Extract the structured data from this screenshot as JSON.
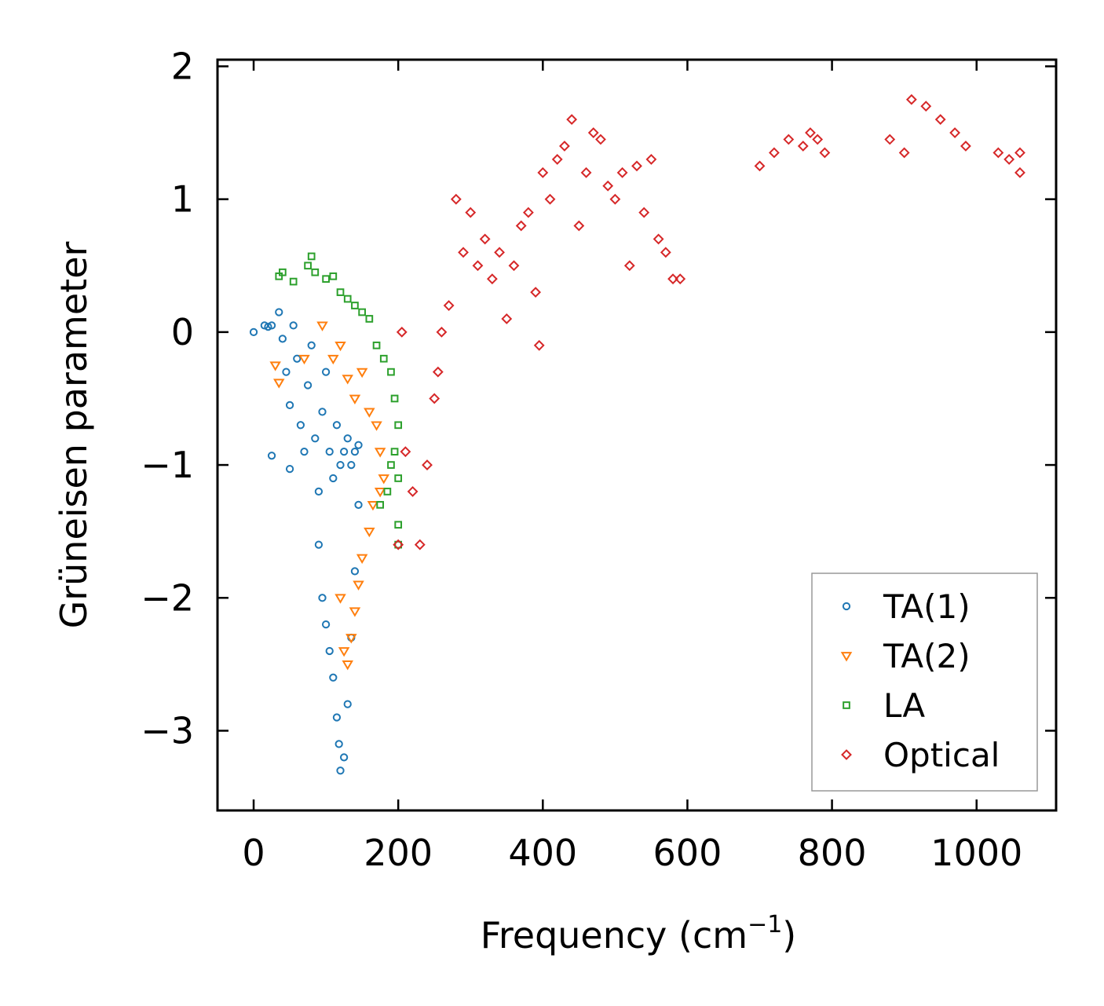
{
  "chart_data": {
    "type": "scatter",
    "title": "",
    "xlabel": "Frequency (cm",
    "xlabel_sup": "−1",
    "xlabel_end": ")",
    "ylabel": "Grüneisen parameter",
    "xlim": [
      -50,
      1110
    ],
    "ylim": [
      -3.6,
      2.05
    ],
    "xticks": [
      0,
      200,
      400,
      600,
      800,
      1000
    ],
    "xtick_labels": [
      "0",
      "200",
      "400",
      "600",
      "800",
      "1000"
    ],
    "yticks": [
      2,
      1,
      0,
      -1,
      -2,
      -3
    ],
    "ytick_labels": [
      "2",
      "1",
      "0",
      "−1",
      "−2",
      "−3"
    ],
    "legend_position": "bottom-right",
    "series": [
      {
        "name": "TA(1)",
        "marker": "circle",
        "color": "#1f77b4",
        "points": [
          [
            0,
            0
          ],
          [
            15,
            0.05
          ],
          [
            20,
            0.04
          ],
          [
            25,
            0.05
          ],
          [
            35,
            0.15
          ],
          [
            40,
            -0.05
          ],
          [
            45,
            -0.3
          ],
          [
            50,
            -0.55
          ],
          [
            55,
            0.05
          ],
          [
            60,
            -0.2
          ],
          [
            65,
            -0.7
          ],
          [
            70,
            -0.9
          ],
          [
            75,
            -0.4
          ],
          [
            80,
            -0.1
          ],
          [
            85,
            -0.8
          ],
          [
            90,
            -1.2
          ],
          [
            95,
            -0.6
          ],
          [
            100,
            -0.3
          ],
          [
            105,
            -0.9
          ],
          [
            110,
            -1.1
          ],
          [
            115,
            -0.7
          ],
          [
            120,
            -1.0
          ],
          [
            125,
            -0.9
          ],
          [
            130,
            -0.8
          ],
          [
            135,
            -1.0
          ],
          [
            140,
            -0.9
          ],
          [
            145,
            -0.85
          ],
          [
            25,
            -0.93
          ],
          [
            50,
            -1.03
          ],
          [
            90,
            -1.6
          ],
          [
            95,
            -2.0
          ],
          [
            100,
            -2.2
          ],
          [
            105,
            -2.4
          ],
          [
            110,
            -2.6
          ],
          [
            115,
            -2.9
          ],
          [
            118,
            -3.1
          ],
          [
            120,
            -3.3
          ],
          [
            125,
            -3.2
          ],
          [
            130,
            -2.8
          ],
          [
            135,
            -2.3
          ],
          [
            140,
            -1.8
          ],
          [
            145,
            -1.3
          ]
        ]
      },
      {
        "name": "TA(2)",
        "marker": "triangle-down",
        "color": "#ff7f0e",
        "points": [
          [
            30,
            -0.25
          ],
          [
            35,
            -0.38
          ],
          [
            70,
            -0.2
          ],
          [
            95,
            0.05
          ],
          [
            110,
            -0.2
          ],
          [
            120,
            -0.1
          ],
          [
            130,
            -0.35
          ],
          [
            140,
            -0.5
          ],
          [
            150,
            -0.3
          ],
          [
            160,
            -0.6
          ],
          [
            170,
            -0.7
          ],
          [
            175,
            -0.9
          ],
          [
            180,
            -1.1
          ],
          [
            175,
            -1.2
          ],
          [
            165,
            -1.3
          ],
          [
            160,
            -1.5
          ],
          [
            150,
            -1.7
          ],
          [
            145,
            -1.9
          ],
          [
            140,
            -2.1
          ],
          [
            135,
            -2.3
          ],
          [
            130,
            -2.5
          ],
          [
            125,
            -2.4
          ],
          [
            120,
            -2.0
          ]
        ]
      },
      {
        "name": "LA",
        "marker": "square",
        "color": "#2ca02c",
        "points": [
          [
            35,
            0.42
          ],
          [
            40,
            0.45
          ],
          [
            55,
            0.38
          ],
          [
            75,
            0.5
          ],
          [
            80,
            0.57
          ],
          [
            85,
            0.45
          ],
          [
            100,
            0.4
          ],
          [
            110,
            0.42
          ],
          [
            120,
            0.3
          ],
          [
            130,
            0.25
          ],
          [
            140,
            0.2
          ],
          [
            150,
            0.15
          ],
          [
            160,
            0.1
          ],
          [
            170,
            -0.1
          ],
          [
            180,
            -0.2
          ],
          [
            190,
            -0.3
          ],
          [
            195,
            -0.5
          ],
          [
            200,
            -0.7
          ],
          [
            195,
            -0.9
          ],
          [
            190,
            -1.0
          ],
          [
            185,
            -1.2
          ],
          [
            175,
            -1.3
          ],
          [
            200,
            -1.1
          ],
          [
            200,
            -1.45
          ],
          [
            200,
            -1.6
          ]
        ]
      },
      {
        "name": "Optical",
        "marker": "diamond",
        "color": "#d62728",
        "points": [
          [
            205,
            0.0
          ],
          [
            200,
            -1.6
          ],
          [
            210,
            -0.9
          ],
          [
            220,
            -1.2
          ],
          [
            230,
            -1.6
          ],
          [
            240,
            -1.0
          ],
          [
            250,
            -0.5
          ],
          [
            255,
            -0.3
          ],
          [
            260,
            0.0
          ],
          [
            270,
            0.2
          ],
          [
            280,
            1.0
          ],
          [
            290,
            0.6
          ],
          [
            300,
            0.9
          ],
          [
            310,
            0.5
          ],
          [
            320,
            0.7
          ],
          [
            330,
            0.4
          ],
          [
            340,
            0.6
          ],
          [
            350,
            0.1
          ],
          [
            360,
            0.5
          ],
          [
            370,
            0.8
          ],
          [
            380,
            0.9
          ],
          [
            390,
            0.3
          ],
          [
            395,
            -0.1
          ],
          [
            400,
            1.2
          ],
          [
            410,
            1.0
          ],
          [
            420,
            1.3
          ],
          [
            430,
            1.4
          ],
          [
            440,
            1.6
          ],
          [
            450,
            0.8
          ],
          [
            460,
            1.2
          ],
          [
            470,
            1.5
          ],
          [
            480,
            1.45
          ],
          [
            490,
            1.1
          ],
          [
            500,
            1.0
          ],
          [
            510,
            1.2
          ],
          [
            520,
            0.5
          ],
          [
            530,
            1.25
          ],
          [
            540,
            0.9
          ],
          [
            550,
            1.3
          ],
          [
            560,
            0.7
          ],
          [
            570,
            0.6
          ],
          [
            580,
            0.4
          ],
          [
            590,
            0.4
          ],
          [
            700,
            1.25
          ],
          [
            720,
            1.35
          ],
          [
            740,
            1.45
          ],
          [
            760,
            1.4
          ],
          [
            770,
            1.5
          ],
          [
            780,
            1.45
          ],
          [
            790,
            1.35
          ],
          [
            880,
            1.45
          ],
          [
            900,
            1.35
          ],
          [
            910,
            1.75
          ],
          [
            930,
            1.7
          ],
          [
            950,
            1.6
          ],
          [
            970,
            1.5
          ],
          [
            985,
            1.4
          ],
          [
            1030,
            1.35
          ],
          [
            1045,
            1.3
          ],
          [
            1060,
            1.2
          ],
          [
            1060,
            1.35
          ]
        ]
      }
    ]
  }
}
